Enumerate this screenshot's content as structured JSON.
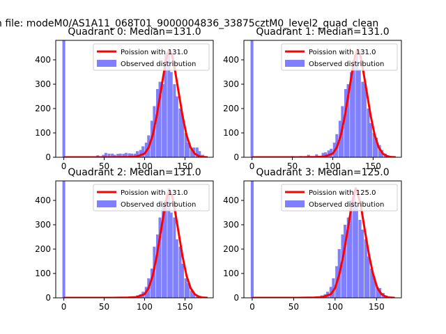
{
  "suptitle": "n file: modeM0/AS1A11_068T01_9000004836_33875cztM0_level2_quad_clean",
  "colors": {
    "poisson_line": "#ff0000",
    "histogram": "#8080ff",
    "axis": "#000000"
  },
  "chart_data": [
    {
      "type": "bar",
      "title": "Quadrant 0: Median=131.0",
      "median": 131.0,
      "xlim": [
        -10,
        185
      ],
      "ylim": [
        0,
        480
      ],
      "xticks": [
        0,
        50,
        100,
        150
      ],
      "yticks": [
        0,
        100,
        200,
        300,
        400
      ],
      "legend": [
        "Poission with 131.0",
        "Observed distribution"
      ],
      "legend_position": "upper-right",
      "bin_width": 3.5,
      "histogram": {
        "x": [
          0,
          7,
          14,
          21,
          28,
          35,
          42,
          49,
          52,
          56,
          60,
          63,
          67,
          70,
          74,
          77,
          81,
          84,
          88,
          91,
          95,
          98,
          102,
          105,
          109,
          112,
          116,
          119,
          123,
          126,
          130,
          133,
          137,
          140,
          144,
          147,
          151,
          154,
          158,
          161,
          165,
          168,
          172,
          175
        ],
        "counts": [
          480,
          2,
          2,
          3,
          2,
          3,
          8,
          10,
          18,
          15,
          15,
          10,
          14,
          15,
          14,
          18,
          16,
          15,
          15,
          25,
          30,
          45,
          60,
          90,
          150,
          210,
          280,
          310,
          300,
          430,
          440,
          350,
          300,
          250,
          200,
          170,
          100,
          60,
          35,
          40,
          40,
          25,
          10,
          2
        ]
      },
      "poisson": {
        "x": [
          0,
          60,
          80,
          90,
          100,
          105,
          110,
          115,
          120,
          125,
          128,
          131,
          134,
          137,
          142,
          147,
          152,
          157,
          162,
          167,
          172,
          178
        ],
        "y": [
          0,
          0,
          1,
          3,
          15,
          40,
          90,
          170,
          270,
          370,
          420,
          440,
          420,
          370,
          270,
          170,
          90,
          40,
          15,
          5,
          1,
          0
        ]
      }
    },
    {
      "type": "bar",
      "title": "Quadrant 1: Median=131.0",
      "median": 131.0,
      "xlim": [
        -10,
        185
      ],
      "ylim": [
        0,
        480
      ],
      "xticks": [
        0,
        50,
        100,
        150
      ],
      "yticks": [
        0,
        100,
        200,
        300,
        400
      ],
      "legend": [
        "Poission with 131.0",
        "Observed distribution"
      ],
      "legend_position": "upper-right",
      "bin_width": 3.5,
      "histogram": {
        "x": [
          0,
          10,
          20,
          30,
          40,
          50,
          60,
          70,
          80,
          88,
          91,
          95,
          98,
          102,
          105,
          109,
          112,
          116,
          119,
          123,
          126,
          130,
          133,
          137,
          140,
          144,
          147,
          151,
          154,
          158,
          161,
          165,
          168,
          172
        ],
        "counts": [
          480,
          3,
          3,
          3,
          4,
          5,
          5,
          10,
          12,
          18,
          20,
          28,
          35,
          60,
          95,
          150,
          210,
          280,
          300,
          350,
          400,
          420,
          360,
          310,
          300,
          200,
          140,
          100,
          80,
          50,
          30,
          15,
          5,
          2
        ]
      },
      "poisson": {
        "x": [
          0,
          60,
          80,
          90,
          100,
          105,
          110,
          115,
          120,
          125,
          128,
          131,
          134,
          137,
          142,
          147,
          152,
          157,
          162,
          167,
          172,
          178
        ],
        "y": [
          0,
          0,
          1,
          3,
          15,
          40,
          90,
          170,
          270,
          370,
          420,
          440,
          420,
          370,
          270,
          170,
          90,
          40,
          15,
          5,
          1,
          0
        ]
      }
    },
    {
      "type": "bar",
      "title": "Quadrant 2: Median=131.0",
      "median": 131.0,
      "xlim": [
        -10,
        185
      ],
      "ylim": [
        0,
        480
      ],
      "xticks": [
        0,
        50,
        100,
        150
      ],
      "yticks": [
        0,
        100,
        200,
        300,
        400
      ],
      "legend": [
        "Poission with 131.0",
        "Observed distribution"
      ],
      "legend_position": "upper-right",
      "bin_width": 3.5,
      "histogram": {
        "x": [
          0,
          88,
          91,
          95,
          98,
          102,
          105,
          109,
          112,
          116,
          119,
          123,
          126,
          130,
          133,
          137,
          140,
          144,
          147,
          151,
          154,
          158,
          161,
          165,
          168,
          172
        ],
        "counts": [
          480,
          5,
          10,
          15,
          25,
          45,
          80,
          120,
          210,
          260,
          330,
          380,
          400,
          450,
          350,
          330,
          240,
          210,
          140,
          80,
          60,
          30,
          15,
          5,
          3,
          1
        ]
      },
      "poisson": {
        "x": [
          0,
          60,
          80,
          90,
          100,
          105,
          110,
          115,
          120,
          125,
          128,
          131,
          134,
          137,
          142,
          147,
          152,
          157,
          162,
          167,
          172,
          178
        ],
        "y": [
          0,
          0,
          1,
          3,
          15,
          40,
          90,
          170,
          270,
          370,
          420,
          440,
          420,
          370,
          270,
          170,
          90,
          40,
          15,
          5,
          1,
          0
        ]
      }
    },
    {
      "type": "bar",
      "title": "Quadrant 3: Median=125.0",
      "median": 125.0,
      "xlim": [
        -10,
        180
      ],
      "ylim": [
        0,
        480
      ],
      "xticks": [
        0,
        50,
        100,
        150
      ],
      "yticks": [
        0,
        100,
        200,
        300,
        400
      ],
      "legend": [
        "Poission with 125.0",
        "Observed distribution"
      ],
      "legend_position": "upper-right",
      "bin_width": 3.5,
      "histogram": {
        "x": [
          0,
          81,
          84,
          88,
          91,
          95,
          98,
          102,
          105,
          109,
          112,
          116,
          119,
          123,
          126,
          130,
          133,
          137,
          140,
          144,
          147,
          151,
          154,
          158,
          161,
          165,
          168
        ],
        "counts": [
          480,
          5,
          10,
          15,
          25,
          45,
          80,
          130,
          200,
          260,
          300,
          330,
          400,
          430,
          380,
          320,
          280,
          240,
          170,
          120,
          90,
          45,
          40,
          20,
          10,
          5,
          2
        ]
      },
      "poisson": {
        "x": [
          0,
          55,
          75,
          85,
          95,
          100,
          105,
          110,
          115,
          120,
          123,
          125,
          127,
          131,
          136,
          141,
          146,
          151,
          156,
          161,
          166,
          172
        ],
        "y": [
          0,
          0,
          1,
          3,
          15,
          40,
          95,
          175,
          275,
          380,
          430,
          450,
          430,
          380,
          275,
          175,
          95,
          40,
          15,
          5,
          1,
          0
        ]
      }
    }
  ]
}
